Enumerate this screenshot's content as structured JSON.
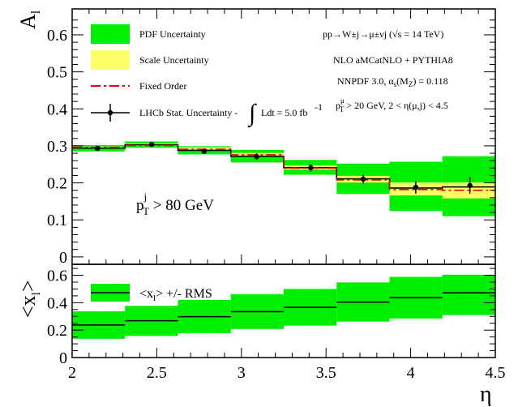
{
  "colors": {
    "pdf_band": "#00ee00",
    "scale_band": "#ffff66",
    "fixed_order": "#e8000b",
    "nlo_line": "#000000",
    "rms_band": "#00ee00"
  },
  "texts": {
    "top_ylabel_main": "A",
    "top_ylabel_sub": "l",
    "bottom_ylabel": "<x",
    "bottom_ylabel_sub": "l",
    "bottom_ylabel_close": ">",
    "xlabel": "η",
    "cut_label_main": "p",
    "cut_label_sup": "j",
    "cut_label_sub": "T",
    "cut_label_rest": " > 80 GeV"
  },
  "legend_top": {
    "pdf": "PDF Uncertainty",
    "scale": "Scale Uncertainty",
    "fixed": "Fixed Order",
    "lhcb_a": "LHCb Stat. Uncertainty - ",
    "lhcb_b": "Ldt = 5.0 fb",
    "lhcb_c": "-1"
  },
  "annotations": {
    "process": "pp→W±j→μ±νj (√s = 14 TeV)",
    "generator": "NLO aMCatNLO + PYTHIA8",
    "pdf_a": "NNPDF 3.0, α",
    "pdf_b": "s",
    "pdf_c": "(M",
    "pdf_d": "Z",
    "pdf_e": ") = 0.118",
    "cuts_a": "p",
    "cuts_b": "μ",
    "cuts_c": "T",
    "cuts_d": " > 20 GeV, 2 < η(μ,j) < 4.5"
  },
  "legend_bottom": {
    "label_a": "<x",
    "label_b": "l",
    "label_c": "> +/- RMS"
  },
  "chart_data": [
    {
      "type": "bar",
      "panel": "top",
      "x_edges": [
        2.0,
        2.3125,
        2.625,
        2.9375,
        3.25,
        3.5625,
        3.875,
        4.1875,
        4.5
      ],
      "x_centers": [
        2.15,
        2.47,
        2.78,
        3.09,
        3.41,
        3.72,
        4.03,
        4.35
      ],
      "series": [
        {
          "name": "PDF Uncertainty",
          "lower": [
            0.285,
            0.295,
            0.277,
            0.255,
            0.222,
            0.17,
            0.124,
            0.11
          ],
          "upper": [
            0.302,
            0.312,
            0.299,
            0.289,
            0.262,
            0.252,
            0.257,
            0.272
          ]
        },
        {
          "name": "Scale Uncertainty",
          "lower": [
            0.292,
            0.3,
            0.288,
            0.271,
            0.236,
            0.201,
            0.166,
            0.158
          ],
          "upper": [
            0.298,
            0.307,
            0.296,
            0.281,
            0.247,
            0.219,
            0.201,
            0.201
          ]
        },
        {
          "name": "Fixed Order",
          "values": [
            0.296,
            0.301,
            0.291,
            0.276,
            0.24,
            0.208,
            0.182,
            0.18
          ]
        },
        {
          "name": "NLO",
          "values": [
            0.294,
            0.303,
            0.288,
            0.272,
            0.241,
            0.211,
            0.186,
            0.189
          ]
        },
        {
          "name": "LHCb Stat. Uncertainty",
          "values": [
            0.293,
            0.304,
            0.285,
            0.271,
            0.241,
            0.21,
            0.188,
            0.193
          ],
          "errors": [
            0.005,
            0.006,
            0.007,
            0.009,
            0.01,
            0.013,
            0.017,
            0.022
          ]
        }
      ],
      "ylabel": "A_l",
      "ylim": [
        -0.02,
        0.67
      ],
      "yticks": [
        0,
        0.1,
        0.2,
        0.3,
        0.4,
        0.5,
        0.6
      ],
      "ytick_labels": [
        "0",
        "0.1",
        "0.2",
        "0.3",
        "0.4",
        "0.5",
        "0.6"
      ],
      "xlim": [
        2.0,
        4.5
      ]
    },
    {
      "type": "bar",
      "panel": "bottom",
      "x_edges": [
        2.0,
        2.3125,
        2.625,
        2.9375,
        3.25,
        3.5625,
        3.875,
        4.1875,
        4.5
      ],
      "series": [
        {
          "name": "<x_l> +/- RMS",
          "values": [
            0.237,
            0.268,
            0.298,
            0.335,
            0.366,
            0.404,
            0.437,
            0.472
          ],
          "lower": [
            0.137,
            0.158,
            0.178,
            0.208,
            0.233,
            0.262,
            0.285,
            0.31
          ],
          "upper": [
            0.337,
            0.377,
            0.42,
            0.463,
            0.5,
            0.548,
            0.588,
            0.604
          ]
        }
      ],
      "ylabel": "<x_l>",
      "ylim": [
        0.0,
        0.68
      ],
      "yticks": [
        0,
        0.2,
        0.4,
        0.6
      ],
      "ytick_labels": [
        "0",
        "0.2",
        "0.4",
        "0.6"
      ],
      "xlim": [
        2.0,
        4.5
      ],
      "xticks": [
        2,
        2.5,
        3,
        3.5,
        4,
        4.5
      ],
      "xtick_labels": [
        "2",
        "2.5",
        "3",
        "3.5",
        "4",
        "4.5"
      ],
      "xlabel": "η"
    }
  ]
}
